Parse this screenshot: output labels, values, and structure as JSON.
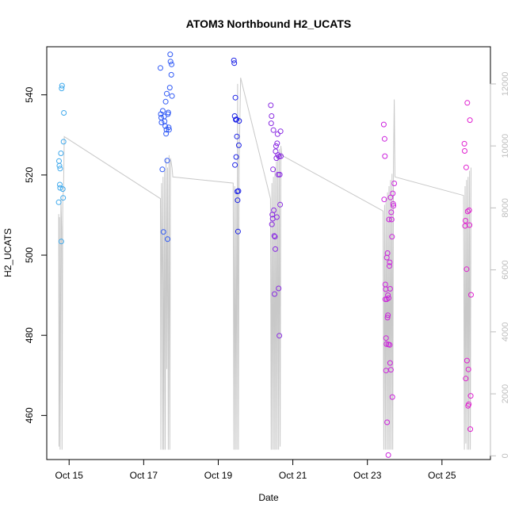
{
  "chart_data": {
    "type": "scatter",
    "title": "ATOM3 Northbound H2_UCATS",
    "xlabel": "Date",
    "ylabel": "H2_UCATS",
    "x_ticks": [
      "Oct 15",
      "Oct 17",
      "Oct 19",
      "Oct 21",
      "Oct 23",
      "Oct 25"
    ],
    "x_tick_days": [
      15,
      17,
      19,
      21,
      23,
      25
    ],
    "xlim_days": [
      14.4,
      26.3
    ],
    "ylim": [
      449,
      552
    ],
    "y_ticks": [
      460,
      480,
      500,
      520,
      540
    ],
    "y2_ticks": [
      0,
      2000,
      4000,
      6000,
      8000,
      10000,
      12000
    ],
    "y2lim": [
      -120,
      13200
    ],
    "y2_color": "#bdbdbd",
    "grid": false,
    "points": [
      {
        "x": 14.72,
        "y": 513.2,
        "color": "#3fa9ec"
      },
      {
        "x": 14.73,
        "y": 523.5,
        "color": "#3fa9ec"
      },
      {
        "x": 14.74,
        "y": 522.3,
        "color": "#3fa9ec"
      },
      {
        "x": 14.75,
        "y": 517.6,
        "color": "#3fa9ec"
      },
      {
        "x": 14.76,
        "y": 521.6,
        "color": "#3fa9ec"
      },
      {
        "x": 14.76,
        "y": 516.8,
        "color": "#3fa9ec"
      },
      {
        "x": 14.78,
        "y": 525.4,
        "color": "#3fa9ec"
      },
      {
        "x": 14.79,
        "y": 503.4,
        "color": "#3fa9ec"
      },
      {
        "x": 14.8,
        "y": 541.6,
        "color": "#3fa9ec"
      },
      {
        "x": 14.81,
        "y": 542.3,
        "color": "#3fa9ec"
      },
      {
        "x": 14.83,
        "y": 516.5,
        "color": "#3fa9ec"
      },
      {
        "x": 14.84,
        "y": 514.3,
        "color": "#3fa9ec"
      },
      {
        "x": 14.85,
        "y": 528.3,
        "color": "#3fa9ec"
      },
      {
        "x": 14.86,
        "y": 535.5,
        "color": "#3fa9ec"
      },
      {
        "x": 17.45,
        "y": 546.7,
        "color": "#2f59f5"
      },
      {
        "x": 17.46,
        "y": 535.2,
        "color": "#2f59f5"
      },
      {
        "x": 17.47,
        "y": 534.3,
        "color": "#2f59f5"
      },
      {
        "x": 17.48,
        "y": 533.1,
        "color": "#2f59f5"
      },
      {
        "x": 17.5,
        "y": 521.4,
        "color": "#2f59f5"
      },
      {
        "x": 17.51,
        "y": 536.0,
        "color": "#2f59f5"
      },
      {
        "x": 17.53,
        "y": 505.8,
        "color": "#2f59f5"
      },
      {
        "x": 17.55,
        "y": 534.6,
        "color": "#2f59f5"
      },
      {
        "x": 17.56,
        "y": 533.4,
        "color": "#2f59f5"
      },
      {
        "x": 17.58,
        "y": 532.2,
        "color": "#2f59f5"
      },
      {
        "x": 17.59,
        "y": 538.3,
        "color": "#2f59f5"
      },
      {
        "x": 17.6,
        "y": 530.3,
        "color": "#2f59f5"
      },
      {
        "x": 17.61,
        "y": 531.3,
        "color": "#2f59f5"
      },
      {
        "x": 17.62,
        "y": 540.3,
        "color": "#2f59f5"
      },
      {
        "x": 17.63,
        "y": 523.6,
        "color": "#2f59f5"
      },
      {
        "x": 17.64,
        "y": 504.0,
        "color": "#2f59f5"
      },
      {
        "x": 17.65,
        "y": 535.2,
        "color": "#2f59f5"
      },
      {
        "x": 17.66,
        "y": 535.6,
        "color": "#2f59f5"
      },
      {
        "x": 17.67,
        "y": 531.9,
        "color": "#2f59f5"
      },
      {
        "x": 17.68,
        "y": 531.3,
        "color": "#2f59f5"
      },
      {
        "x": 17.7,
        "y": 541.8,
        "color": "#2f59f5"
      },
      {
        "x": 17.71,
        "y": 550.1,
        "color": "#2f59f5"
      },
      {
        "x": 17.72,
        "y": 548.3,
        "color": "#2f59f5"
      },
      {
        "x": 17.74,
        "y": 545.0,
        "color": "#2f59f5"
      },
      {
        "x": 17.75,
        "y": 547.6,
        "color": "#2f59f5"
      },
      {
        "x": 17.76,
        "y": 539.7,
        "color": "#2f59f5"
      },
      {
        "x": 19.42,
        "y": 548.6,
        "color": "#1c22e6"
      },
      {
        "x": 19.43,
        "y": 547.9,
        "color": "#1c22e6"
      },
      {
        "x": 19.44,
        "y": 534.7,
        "color": "#1c22e6"
      },
      {
        "x": 19.45,
        "y": 522.5,
        "color": "#1c22e6"
      },
      {
        "x": 19.46,
        "y": 539.3,
        "color": "#1c22e6"
      },
      {
        "x": 19.47,
        "y": 533.8,
        "color": "#1c22e6"
      },
      {
        "x": 19.48,
        "y": 524.5,
        "color": "#1c22e6"
      },
      {
        "x": 19.49,
        "y": 533.9,
        "color": "#1c22e6"
      },
      {
        "x": 19.5,
        "y": 529.6,
        "color": "#1c22e6"
      },
      {
        "x": 19.51,
        "y": 515.9,
        "color": "#1c22e6"
      },
      {
        "x": 19.52,
        "y": 513.7,
        "color": "#1c22e6"
      },
      {
        "x": 19.53,
        "y": 505.9,
        "color": "#1c22e6"
      },
      {
        "x": 19.54,
        "y": 516.0,
        "color": "#1c22e6"
      },
      {
        "x": 19.55,
        "y": 527.4,
        "color": "#1c22e6"
      },
      {
        "x": 19.56,
        "y": 533.5,
        "color": "#1c22e6"
      },
      {
        "x": 20.41,
        "y": 537.4,
        "color": "#8a2be2"
      },
      {
        "x": 20.42,
        "y": 532.9,
        "color": "#8a2be2"
      },
      {
        "x": 20.43,
        "y": 534.7,
        "color": "#8a2be2"
      },
      {
        "x": 20.44,
        "y": 507.7,
        "color": "#8a2be2"
      },
      {
        "x": 20.45,
        "y": 510.1,
        "color": "#8a2be2"
      },
      {
        "x": 20.46,
        "y": 509.1,
        "color": "#8a2be2"
      },
      {
        "x": 20.47,
        "y": 521.4,
        "color": "#8a2be2"
      },
      {
        "x": 20.48,
        "y": 531.2,
        "color": "#8a2be2"
      },
      {
        "x": 20.49,
        "y": 511.2,
        "color": "#8a2be2"
      },
      {
        "x": 20.5,
        "y": 504.8,
        "color": "#8a2be2"
      },
      {
        "x": 20.51,
        "y": 490.3,
        "color": "#8a2be2"
      },
      {
        "x": 20.52,
        "y": 504.6,
        "color": "#8a2be2"
      },
      {
        "x": 20.53,
        "y": 501.5,
        "color": "#8a2be2"
      },
      {
        "x": 20.54,
        "y": 525.9,
        "color": "#8a2be2"
      },
      {
        "x": 20.55,
        "y": 527.2,
        "color": "#8a2be2"
      },
      {
        "x": 20.56,
        "y": 524.2,
        "color": "#8a2be2"
      },
      {
        "x": 20.57,
        "y": 509.5,
        "color": "#8a2be2"
      },
      {
        "x": 20.58,
        "y": 527.9,
        "color": "#8a2be2"
      },
      {
        "x": 20.59,
        "y": 530.2,
        "color": "#8a2be2"
      },
      {
        "x": 20.6,
        "y": 525.0,
        "color": "#8a2be2"
      },
      {
        "x": 20.61,
        "y": 520.1,
        "color": "#8a2be2"
      },
      {
        "x": 20.62,
        "y": 491.7,
        "color": "#8a2be2"
      },
      {
        "x": 20.63,
        "y": 524.6,
        "color": "#8a2be2"
      },
      {
        "x": 20.64,
        "y": 479.9,
        "color": "#8a2be2"
      },
      {
        "x": 20.65,
        "y": 520.1,
        "color": "#8a2be2"
      },
      {
        "x": 20.66,
        "y": 512.6,
        "color": "#8a2be2"
      },
      {
        "x": 20.67,
        "y": 530.9,
        "color": "#8a2be2"
      },
      {
        "x": 20.68,
        "y": 524.7,
        "color": "#8a2be2"
      },
      {
        "x": 23.44,
        "y": 532.6,
        "color": "#cc22dd"
      },
      {
        "x": 23.45,
        "y": 513.9,
        "color": "#cc22dd"
      },
      {
        "x": 23.46,
        "y": 529.0,
        "color": "#cc22dd"
      },
      {
        "x": 23.47,
        "y": 524.7,
        "color": "#cc22dd"
      },
      {
        "x": 23.48,
        "y": 492.7,
        "color": "#cc22dd"
      },
      {
        "x": 23.48,
        "y": 489.0,
        "color": "#cc22dd"
      },
      {
        "x": 23.49,
        "y": 491.5,
        "color": "#cc22dd"
      },
      {
        "x": 23.5,
        "y": 479.3,
        "color": "#cc22dd"
      },
      {
        "x": 23.5,
        "y": 471.2,
        "color": "#cc22dd"
      },
      {
        "x": 23.51,
        "y": 477.8,
        "color": "#cc22dd"
      },
      {
        "x": 23.52,
        "y": 489.0,
        "color": "#cc22dd"
      },
      {
        "x": 23.52,
        "y": 499.4,
        "color": "#cc22dd"
      },
      {
        "x": 23.53,
        "y": 458.3,
        "color": "#cc22dd"
      },
      {
        "x": 23.54,
        "y": 500.5,
        "color": "#cc22dd"
      },
      {
        "x": 23.54,
        "y": 484.4,
        "color": "#cc22dd"
      },
      {
        "x": 23.55,
        "y": 490.0,
        "color": "#cc22dd"
      },
      {
        "x": 23.55,
        "y": 485.0,
        "color": "#cc22dd"
      },
      {
        "x": 23.56,
        "y": 477.7,
        "color": "#cc22dd"
      },
      {
        "x": 23.56,
        "y": 450.1,
        "color": "#cc22dd"
      },
      {
        "x": 23.57,
        "y": 489.3,
        "color": "#cc22dd"
      },
      {
        "x": 23.58,
        "y": 508.9,
        "color": "#cc22dd"
      },
      {
        "x": 23.59,
        "y": 497.3,
        "color": "#cc22dd"
      },
      {
        "x": 23.6,
        "y": 477.6,
        "color": "#cc22dd"
      },
      {
        "x": 23.6,
        "y": 498.2,
        "color": "#cc22dd"
      },
      {
        "x": 23.61,
        "y": 473.1,
        "color": "#cc22dd"
      },
      {
        "x": 23.61,
        "y": 491.6,
        "color": "#cc22dd"
      },
      {
        "x": 23.62,
        "y": 514.4,
        "color": "#cc22dd"
      },
      {
        "x": 23.63,
        "y": 471.4,
        "color": "#cc22dd"
      },
      {
        "x": 23.64,
        "y": 510.7,
        "color": "#cc22dd"
      },
      {
        "x": 23.65,
        "y": 508.9,
        "color": "#cc22dd"
      },
      {
        "x": 23.66,
        "y": 504.6,
        "color": "#cc22dd"
      },
      {
        "x": 23.67,
        "y": 464.6,
        "color": "#cc22dd"
      },
      {
        "x": 23.68,
        "y": 515.4,
        "color": "#cc22dd"
      },
      {
        "x": 23.69,
        "y": 512.8,
        "color": "#cc22dd"
      },
      {
        "x": 23.7,
        "y": 512.3,
        "color": "#cc22dd"
      },
      {
        "x": 23.72,
        "y": 517.9,
        "color": "#cc22dd"
      },
      {
        "x": 25.6,
        "y": 527.8,
        "color": "#e020d0"
      },
      {
        "x": 25.61,
        "y": 526.0,
        "color": "#e020d0"
      },
      {
        "x": 25.62,
        "y": 507.3,
        "color": "#e020d0"
      },
      {
        "x": 25.63,
        "y": 508.6,
        "color": "#e020d0"
      },
      {
        "x": 25.64,
        "y": 469.2,
        "color": "#e020d0"
      },
      {
        "x": 25.65,
        "y": 521.9,
        "color": "#e020d0"
      },
      {
        "x": 25.66,
        "y": 496.5,
        "color": "#e020d0"
      },
      {
        "x": 25.67,
        "y": 473.7,
        "color": "#e020d0"
      },
      {
        "x": 25.68,
        "y": 538.0,
        "color": "#e020d0"
      },
      {
        "x": 25.69,
        "y": 510.9,
        "color": "#e020d0"
      },
      {
        "x": 25.7,
        "y": 462.4,
        "color": "#e020d0"
      },
      {
        "x": 25.71,
        "y": 471.5,
        "color": "#e020d0"
      },
      {
        "x": 25.72,
        "y": 462.8,
        "color": "#e020d0"
      },
      {
        "x": 25.73,
        "y": 511.2,
        "color": "#e020d0"
      },
      {
        "x": 25.74,
        "y": 507.5,
        "color": "#e020d0"
      },
      {
        "x": 25.75,
        "y": 533.7,
        "color": "#e020d0"
      },
      {
        "x": 25.76,
        "y": 456.6,
        "color": "#e020d0"
      },
      {
        "x": 25.77,
        "y": 464.9,
        "color": "#e020d0"
      },
      {
        "x": 25.78,
        "y": 490.1,
        "color": "#e020d0"
      }
    ],
    "secondary_series": {
      "axis": "y2",
      "color": "#c8c8c8",
      "type": "line",
      "points": [
        [
          14.72,
          7800
        ],
        [
          14.73,
          300
        ],
        [
          14.74,
          7700
        ],
        [
          14.76,
          200
        ],
        [
          14.78,
          8300
        ],
        [
          14.8,
          7300
        ],
        [
          14.81,
          200
        ],
        [
          14.83,
          8300
        ],
        [
          14.85,
          8600
        ],
        [
          14.87,
          10300
        ],
        [
          17.45,
          8300
        ],
        [
          17.46,
          200
        ],
        [
          17.48,
          8800
        ],
        [
          17.5,
          5600
        ],
        [
          17.51,
          200
        ],
        [
          17.52,
          9000
        ],
        [
          17.54,
          200
        ],
        [
          17.56,
          9200
        ],
        [
          17.58,
          200
        ],
        [
          17.6,
          9600
        ],
        [
          17.62,
          2800
        ],
        [
          17.64,
          9300
        ],
        [
          17.66,
          200
        ],
        [
          17.68,
          9700
        ],
        [
          17.7,
          200
        ],
        [
          17.72,
          9600
        ],
        [
          17.76,
          9300
        ],
        [
          17.78,
          9000
        ],
        [
          19.4,
          8800
        ],
        [
          19.42,
          200
        ],
        [
          19.44,
          8700
        ],
        [
          19.46,
          200
        ],
        [
          19.48,
          8600
        ],
        [
          19.5,
          200
        ],
        [
          19.52,
          12000
        ],
        [
          19.54,
          200
        ],
        [
          19.56,
          9500
        ],
        [
          19.6,
          12200
        ],
        [
          20.4,
          8300
        ],
        [
          20.42,
          200
        ],
        [
          20.44,
          8800
        ],
        [
          20.46,
          200
        ],
        [
          20.48,
          9000
        ],
        [
          20.5,
          200
        ],
        [
          20.52,
          9300
        ],
        [
          20.54,
          200
        ],
        [
          20.56,
          9500
        ],
        [
          20.58,
          200
        ],
        [
          20.6,
          9700
        ],
        [
          20.62,
          200
        ],
        [
          20.64,
          9900
        ],
        [
          20.66,
          300
        ],
        [
          20.68,
          10000
        ],
        [
          20.7,
          9700
        ],
        [
          23.42,
          7900
        ],
        [
          23.44,
          200
        ],
        [
          23.46,
          8100
        ],
        [
          23.48,
          200
        ],
        [
          23.5,
          8300
        ],
        [
          23.52,
          200
        ],
        [
          23.54,
          8500
        ],
        [
          23.56,
          200
        ],
        [
          23.58,
          8700
        ],
        [
          23.6,
          200
        ],
        [
          23.62,
          8900
        ],
        [
          23.64,
          200
        ],
        [
          23.66,
          9100
        ],
        [
          23.68,
          200
        ],
        [
          23.7,
          9300
        ],
        [
          23.72,
          11500
        ],
        [
          23.74,
          9000
        ],
        [
          25.58,
          8400
        ],
        [
          25.6,
          200
        ],
        [
          25.62,
          8700
        ],
        [
          25.64,
          400
        ],
        [
          25.66,
          8900
        ],
        [
          25.68,
          200
        ],
        [
          25.7,
          9000
        ],
        [
          25.72,
          200
        ],
        [
          25.74,
          9200
        ],
        [
          25.76,
          200
        ],
        [
          25.78,
          9300
        ]
      ]
    }
  }
}
